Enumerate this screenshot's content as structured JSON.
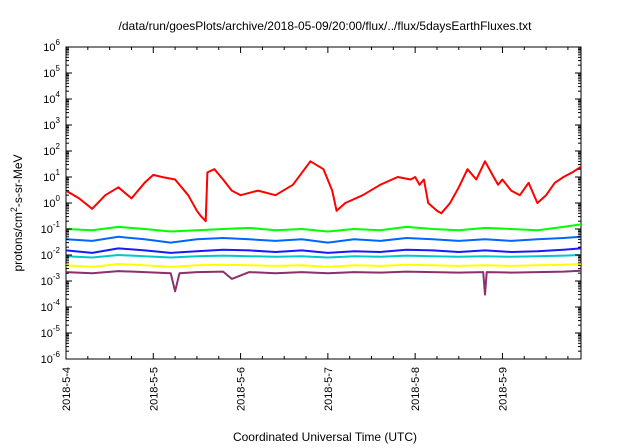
{
  "chart_data": {
    "type": "line",
    "title": "/data/run/goesPlots/archive/2018-05-09/20:00/flux/../flux/5daysEarthFluxes.txt",
    "xlabel": "Coordinated Universal Time (UTC)",
    "ylabel": {
      "prefix": "protons/cm",
      "sup": "2",
      "suffix": "-s-sr-MeV"
    },
    "yscale": "log",
    "ylim_exponents": [
      -6,
      6
    ],
    "ytick_labels": [
      {
        "base": "10",
        "exp": "6"
      },
      {
        "base": "10",
        "exp": "5"
      },
      {
        "base": "10",
        "exp": "4"
      },
      {
        "base": "10",
        "exp": "3"
      },
      {
        "base": "10",
        "exp": "2"
      },
      {
        "base": "10",
        "exp": "1"
      },
      {
        "base": "10",
        "exp": "0"
      },
      {
        "base": "10",
        "exp": "-1"
      },
      {
        "base": "10",
        "exp": "-2"
      },
      {
        "base": "10",
        "exp": "-3"
      },
      {
        "base": "10",
        "exp": "-4"
      },
      {
        "base": "10",
        "exp": "-5"
      },
      {
        "base": "10",
        "exp": "-6"
      }
    ],
    "xlim_days": [
      0,
      5.9
    ],
    "xtick_labels": [
      "2018-5-4",
      "2018-5-5",
      "2018-5-6",
      "2018-5-7",
      "2018-5-8",
      "2018-5-9"
    ],
    "grid": false,
    "series": [
      {
        "color": "#ff0000",
        "x": [
          0,
          0.15,
          0.3,
          0.45,
          0.6,
          0.75,
          0.9,
          1.0,
          1.1,
          1.25,
          1.4,
          1.5,
          1.55,
          1.6,
          1.62,
          1.7,
          1.8,
          1.9,
          2.0,
          2.2,
          2.4,
          2.6,
          2.8,
          2.95,
          3.05,
          3.1,
          3.2,
          3.4,
          3.6,
          3.8,
          3.95,
          4.0,
          4.05,
          4.1,
          4.15,
          4.25,
          4.3,
          4.4,
          4.5,
          4.6,
          4.7,
          4.8,
          4.9,
          4.95,
          5.0,
          5.1,
          5.2,
          5.3,
          5.4,
          5.5,
          5.6,
          5.7,
          5.8,
          5.9
        ],
        "y": [
          3,
          1.5,
          0.6,
          2,
          4,
          1.5,
          6,
          12,
          10,
          8,
          2,
          0.5,
          0.3,
          0.2,
          15,
          20,
          8,
          3,
          2,
          3,
          2,
          5,
          40,
          20,
          3,
          0.5,
          1,
          2,
          5,
          10,
          8,
          10,
          5,
          8,
          1,
          0.5,
          0.4,
          1,
          4,
          20,
          8,
          40,
          10,
          5,
          8,
          3,
          2,
          6,
          1,
          2,
          6,
          10,
          15,
          25
        ]
      },
      {
        "color": "#00ff00",
        "x": [
          0,
          0.3,
          0.6,
          0.9,
          1.2,
          1.5,
          1.8,
          2.1,
          2.4,
          2.7,
          3.0,
          3.3,
          3.6,
          3.9,
          4.2,
          4.5,
          4.8,
          5.1,
          5.4,
          5.7,
          5.9
        ],
        "y": [
          0.1,
          0.09,
          0.12,
          0.1,
          0.08,
          0.09,
          0.1,
          0.11,
          0.09,
          0.1,
          0.08,
          0.1,
          0.09,
          0.12,
          0.1,
          0.09,
          0.11,
          0.1,
          0.09,
          0.12,
          0.15
        ]
      },
      {
        "color": "#0066ff",
        "x": [
          0,
          0.3,
          0.6,
          0.9,
          1.2,
          1.5,
          1.8,
          2.1,
          2.4,
          2.7,
          3.0,
          3.3,
          3.6,
          3.9,
          4.2,
          4.5,
          4.8,
          5.1,
          5.4,
          5.7,
          5.9
        ],
        "y": [
          0.04,
          0.035,
          0.05,
          0.04,
          0.03,
          0.04,
          0.045,
          0.04,
          0.035,
          0.04,
          0.03,
          0.04,
          0.035,
          0.045,
          0.04,
          0.035,
          0.04,
          0.035,
          0.04,
          0.045,
          0.05
        ]
      },
      {
        "color": "#1a1aff",
        "x": [
          0,
          0.3,
          0.6,
          0.9,
          1.2,
          1.5,
          1.8,
          2.1,
          2.4,
          2.7,
          3.0,
          3.3,
          3.6,
          3.9,
          4.2,
          4.5,
          4.8,
          5.1,
          5.4,
          5.7,
          5.9
        ],
        "y": [
          0.015,
          0.012,
          0.018,
          0.015,
          0.012,
          0.014,
          0.016,
          0.015,
          0.013,
          0.015,
          0.012,
          0.014,
          0.013,
          0.016,
          0.015,
          0.013,
          0.015,
          0.013,
          0.014,
          0.016,
          0.018
        ]
      },
      {
        "color": "#00c8c8",
        "x": [
          0,
          0.3,
          0.6,
          0.9,
          1.2,
          1.5,
          1.8,
          2.1,
          2.4,
          2.7,
          3.0,
          3.3,
          3.6,
          3.9,
          4.2,
          4.5,
          4.8,
          5.1,
          5.4,
          5.7,
          5.9
        ],
        "y": [
          0.009,
          0.008,
          0.01,
          0.009,
          0.008,
          0.009,
          0.0095,
          0.009,
          0.0085,
          0.009,
          0.008,
          0.009,
          0.0085,
          0.0095,
          0.009,
          0.0085,
          0.009,
          0.0085,
          0.009,
          0.0095,
          0.01
        ]
      },
      {
        "color": "#ffff00",
        "x": [
          0,
          0.3,
          0.6,
          0.9,
          1.2,
          1.5,
          1.8,
          2.1,
          2.4,
          2.7,
          3.0,
          3.3,
          3.6,
          3.9,
          4.2,
          4.5,
          4.8,
          5.1,
          5.4,
          5.7,
          5.9
        ],
        "y": [
          0.004,
          0.0035,
          0.0045,
          0.004,
          0.0035,
          0.004,
          0.0042,
          0.004,
          0.0038,
          0.004,
          0.0035,
          0.004,
          0.0038,
          0.0042,
          0.004,
          0.0038,
          0.004,
          0.0038,
          0.004,
          0.0042,
          0.0045
        ]
      },
      {
        "color": "#8b2f6e",
        "x": [
          0,
          0.3,
          0.6,
          0.9,
          1.2,
          1.25,
          1.3,
          1.5,
          1.8,
          1.9,
          2.1,
          2.4,
          2.7,
          3.0,
          3.3,
          3.6,
          3.9,
          4.2,
          4.5,
          4.78,
          4.8,
          4.82,
          5.1,
          5.4,
          5.7,
          5.9
        ],
        "y": [
          0.0022,
          0.002,
          0.0024,
          0.0022,
          0.002,
          0.0004,
          0.002,
          0.0022,
          0.0023,
          0.0012,
          0.0022,
          0.002,
          0.0022,
          0.002,
          0.0022,
          0.0021,
          0.0023,
          0.0022,
          0.0021,
          0.0022,
          0.0003,
          0.0022,
          0.0021,
          0.0022,
          0.0023,
          0.0025
        ]
      }
    ]
  }
}
